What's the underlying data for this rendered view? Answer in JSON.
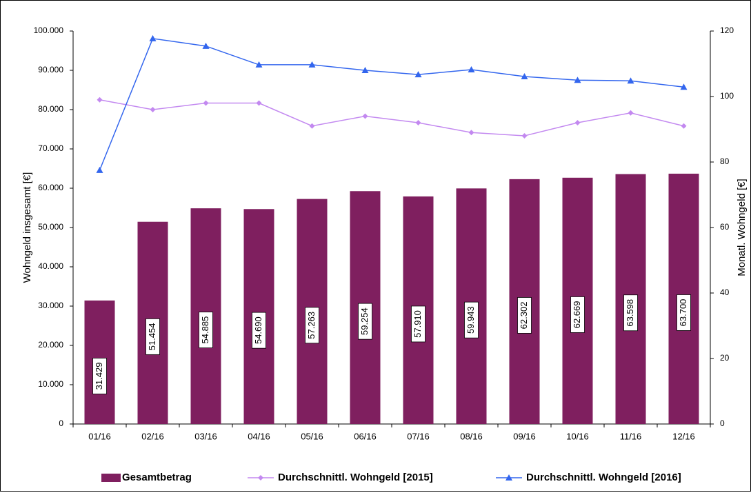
{
  "chart_data": {
    "type": "bar",
    "categories": [
      "01/16",
      "02/16",
      "03/16",
      "04/16",
      "05/16",
      "06/16",
      "07/16",
      "08/16",
      "09/16",
      "10/16",
      "11/16",
      "12/16"
    ],
    "y_label": "Wohngeld insgesamt [€]",
    "y2_label": "Monatl. Wohngeld [€]",
    "ylim": [
      0,
      100000
    ],
    "yticks": [
      0,
      {
        "value": 10000,
        "label": "10.000"
      },
      {
        "value": 20000,
        "label": "20.000"
      },
      {
        "value": 30000,
        "label": "30.000"
      },
      {
        "value": 40000,
        "label": "40.000"
      },
      {
        "value": 50000,
        "label": "50.000"
      },
      {
        "value": 60000,
        "label": "60.000"
      },
      {
        "value": 70000,
        "label": "70.000"
      },
      {
        "value": 80000,
        "label": "80.000"
      },
      {
        "value": 90000,
        "label": "90.000"
      },
      {
        "value": 100000,
        "label": "100.000"
      }
    ],
    "y2lim": [
      0,
      120
    ],
    "y2ticks": [
      0,
      20,
      40,
      60,
      80,
      100,
      120
    ],
    "series": [
      {
        "name": "Gesamtbetrag",
        "type": "bar",
        "color": "#7f1f5f",
        "values": [
          31429,
          51454,
          54885,
          54690,
          57263,
          59254,
          57910,
          59943,
          62302,
          62669,
          63598,
          63700
        ],
        "value_labels": [
          "31.429",
          "51.454",
          "54.885",
          "54.690",
          "57.263",
          "59.254",
          "57.910",
          "59.943",
          "62.302",
          "62.669",
          "63.598",
          "63.700"
        ]
      },
      {
        "name": "Durchschnittl. Wohngeld [2015]",
        "type": "line",
        "marker": "diamond",
        "axis": "y2",
        "color": "#c389f0",
        "values": [
          99,
          96,
          98,
          98,
          91,
          94,
          92,
          89,
          88,
          92,
          95,
          91
        ]
      },
      {
        "name": "Durchschnittl. Wohngeld [2016]",
        "type": "line",
        "marker": "triangle",
        "axis": "y2",
        "color": "#3366ee",
        "values": [
          77.5,
          117.7,
          115.4,
          109.7,
          109.7,
          108,
          106.7,
          108.2,
          106.1,
          105,
          104.8,
          102.9
        ]
      }
    ]
  }
}
